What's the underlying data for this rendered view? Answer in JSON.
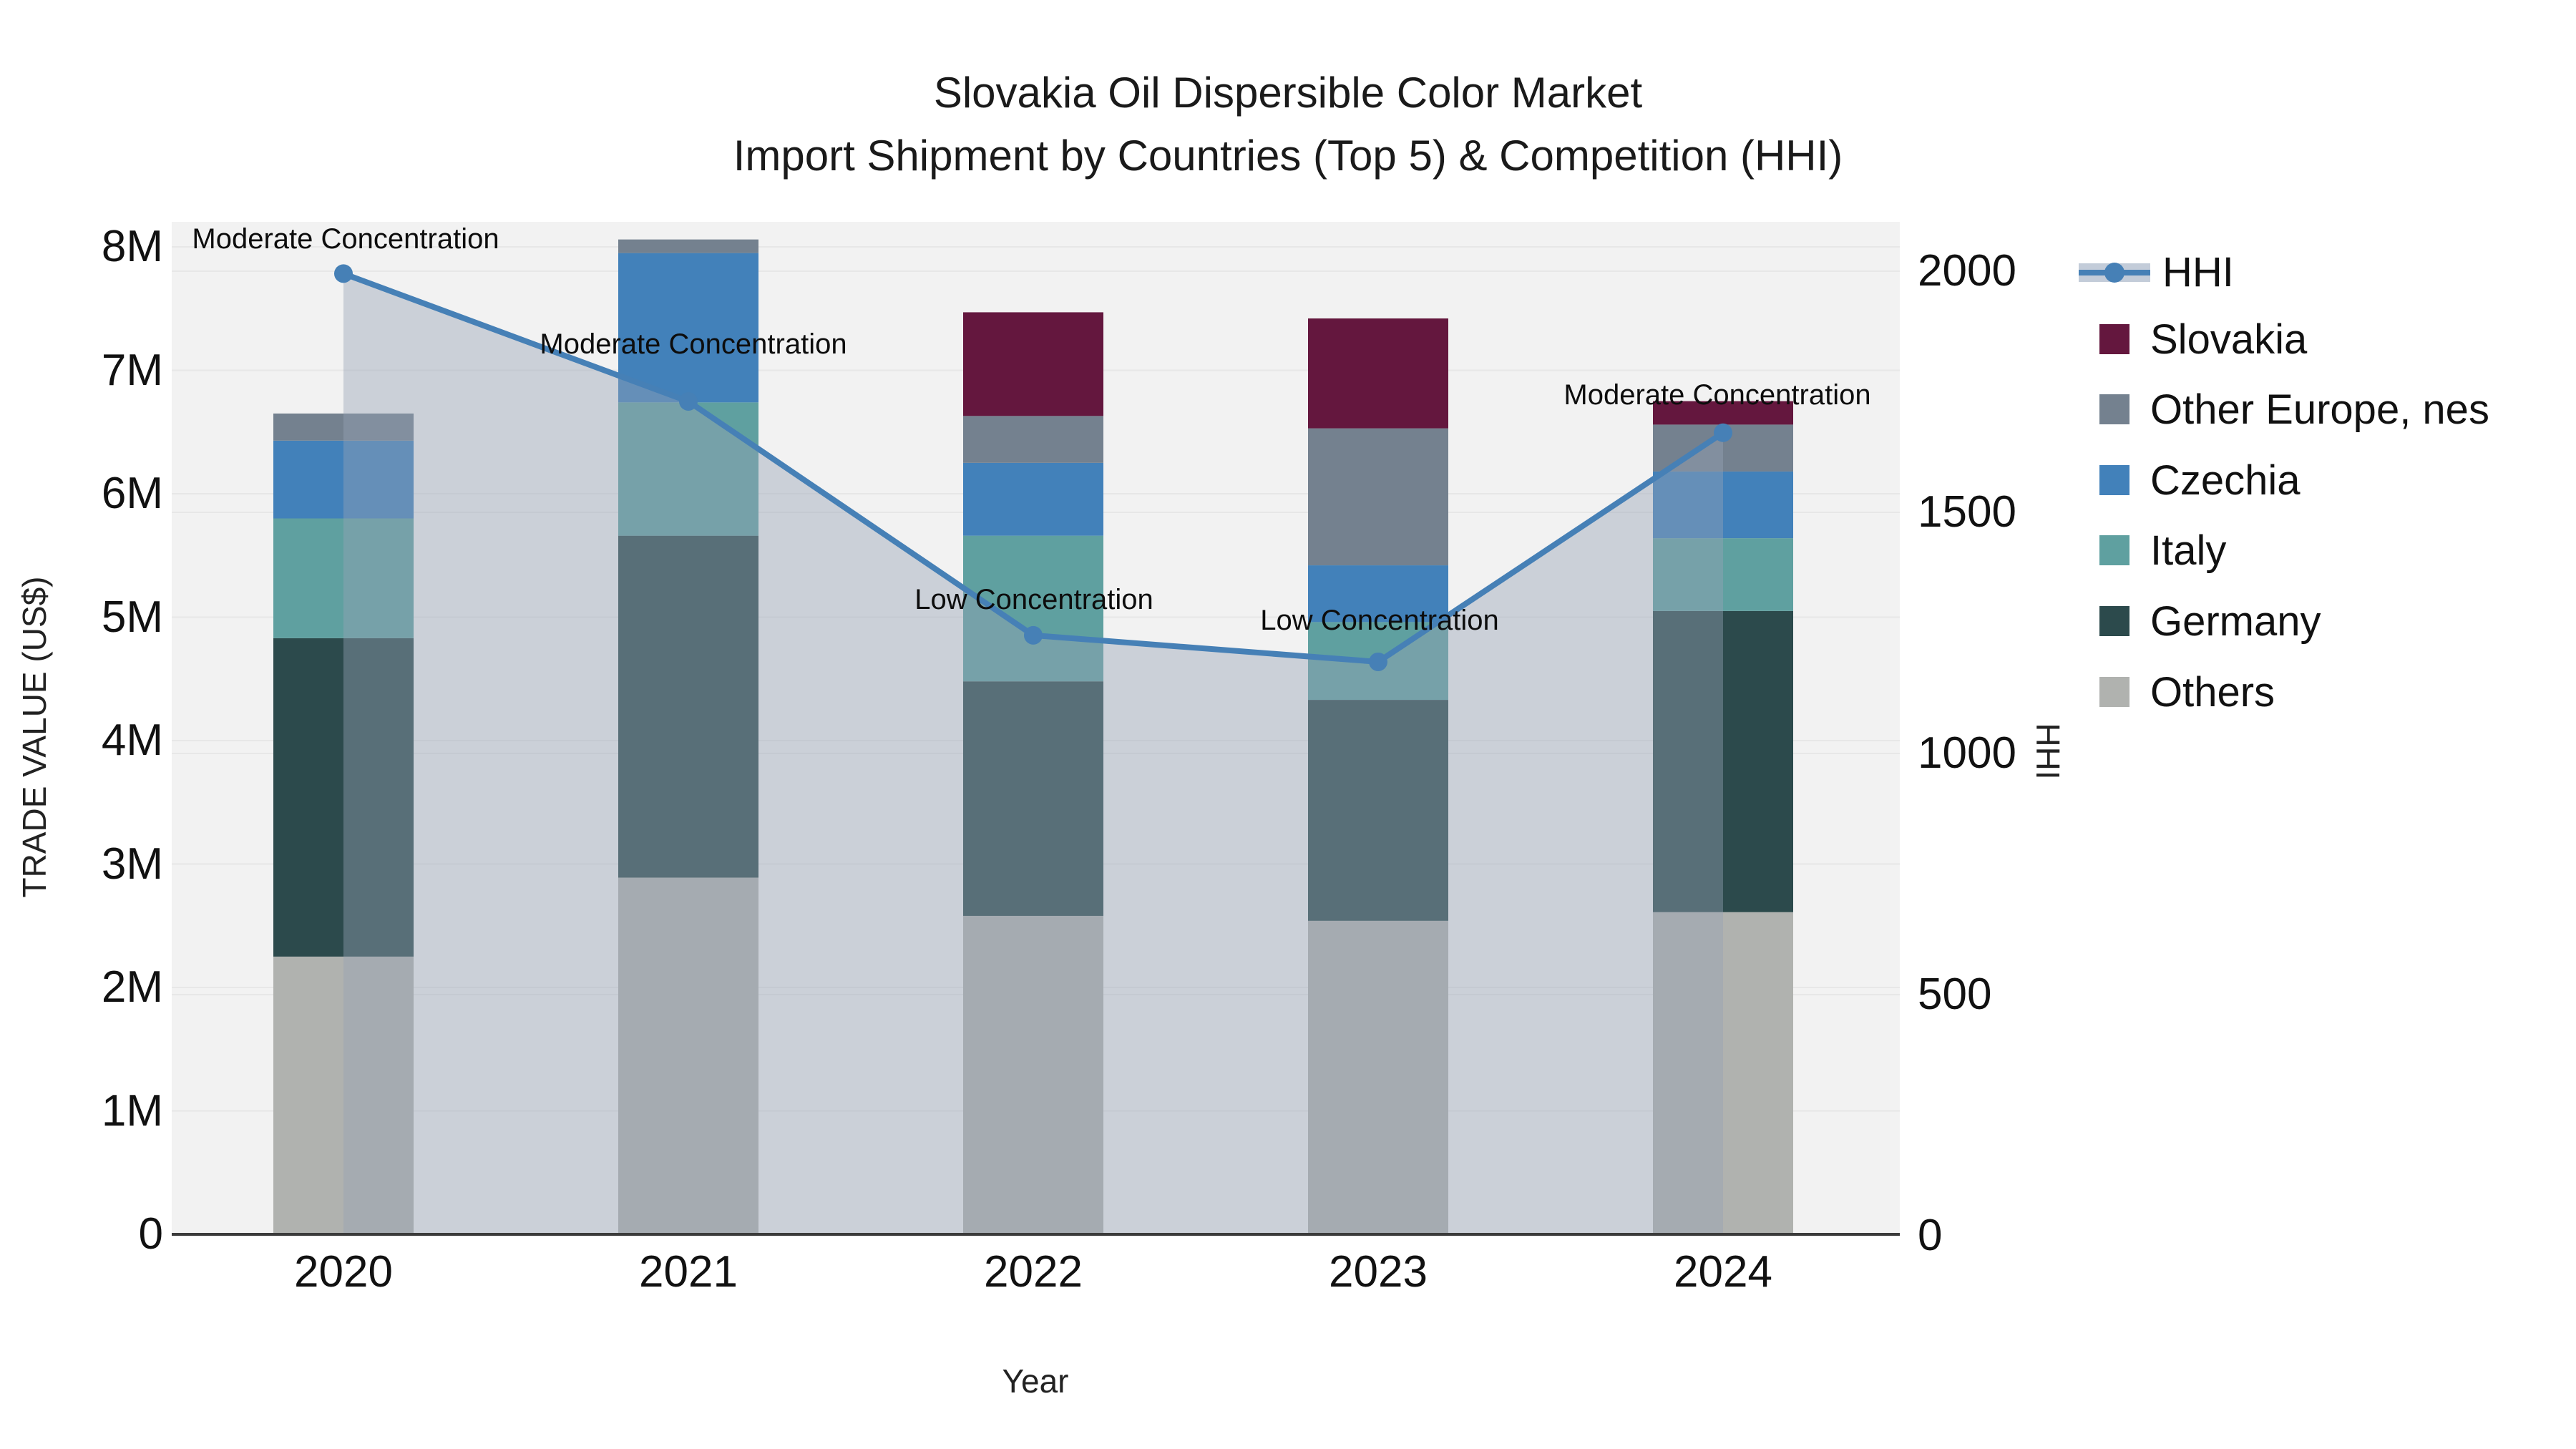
{
  "title": {
    "line1": "Slovakia Oil Dispersible Color Market",
    "line2": "Import Shipment by Countries (Top 5) & Competition (HHI)"
  },
  "axes": {
    "y_left": {
      "title": "TRADE VALUE (US$)",
      "ticks": [
        "0",
        "1M",
        "2M",
        "3M",
        "4M",
        "5M",
        "6M",
        "7M",
        "8M"
      ]
    },
    "y_right": {
      "title": "HHI",
      "ticks": [
        "0",
        "500",
        "1000",
        "1500",
        "2000"
      ]
    },
    "x": {
      "title": "Year",
      "ticks": [
        "2020",
        "2021",
        "2022",
        "2023",
        "2024"
      ]
    }
  },
  "legend": {
    "items": [
      {
        "label": "HHI",
        "type": "line",
        "color": "#4680b6",
        "band_color": "#c3ccd9"
      },
      {
        "label": "Slovakia",
        "type": "swatch",
        "color": "#64173e"
      },
      {
        "label": "Other Europe, nes",
        "type": "swatch",
        "color": "#74818f"
      },
      {
        "label": "Czechia",
        "type": "swatch",
        "color": "#4281ba"
      },
      {
        "label": "Italy",
        "type": "swatch",
        "color": "#5fa0a0"
      },
      {
        "label": "Germany",
        "type": "swatch",
        "color": "#2c4a4c"
      },
      {
        "label": "Others",
        "type": "swatch",
        "color": "#b0b2af"
      }
    ]
  },
  "chart_data": {
    "type": "bar",
    "subtype": "stacked-bar-with-line",
    "title": "Slovakia Oil Dispersible Color Market — Import Shipment by Countries (Top 5) & Competition (HHI)",
    "xlabel": "Year",
    "ylabel": "TRADE VALUE (US$)",
    "y2label": "HHI",
    "categories": [
      "2020",
      "2021",
      "2022",
      "2023",
      "2024"
    ],
    "ylim_millions": [
      0,
      8.2
    ],
    "y2lim": [
      0,
      2000
    ],
    "grid": true,
    "legend_position": "right",
    "unit": "millions USD",
    "series": [
      {
        "name": "Others",
        "color": "#b0b2af",
        "values": [
          2.25,
          2.89,
          2.58,
          2.54,
          2.61
        ]
      },
      {
        "name": "Germany",
        "color": "#2c4a4c",
        "values": [
          2.58,
          2.77,
          1.9,
          1.79,
          2.44
        ]
      },
      {
        "name": "Italy",
        "color": "#5fa0a0",
        "values": [
          0.97,
          1.08,
          1.18,
          0.63,
          0.59
        ]
      },
      {
        "name": "Czechia",
        "color": "#4281ba",
        "values": [
          0.63,
          1.21,
          0.59,
          0.46,
          0.54
        ]
      },
      {
        "name": "Other Europe, nes",
        "color": "#74818f",
        "values": [
          0.22,
          0.11,
          0.38,
          1.11,
          0.38
        ]
      },
      {
        "name": "Slovakia",
        "color": "#64173e",
        "values": [
          0.0,
          0.0,
          0.84,
          0.89,
          0.19
        ]
      }
    ],
    "bar_totals_millions": [
      6.65,
      8.06,
      7.47,
      7.42,
      6.75
    ],
    "line_series": {
      "name": "HHI",
      "color": "#4680b6",
      "axis": "y2",
      "values": [
        1995,
        1730,
        1245,
        1190,
        1665
      ],
      "area_fill": "rgba(150,162,180,0.42)",
      "annotations": [
        "Moderate Concentration",
        "Moderate Concentration",
        "Low Concentration",
        "Low Concentration",
        "Moderate Concentration"
      ]
    }
  },
  "colors": {
    "plot_background": "#f2f2f2",
    "page_background": "#ffffff",
    "gridline": "#e7e7e7",
    "axis_line": "#3b3b3b",
    "text": "#111111"
  }
}
